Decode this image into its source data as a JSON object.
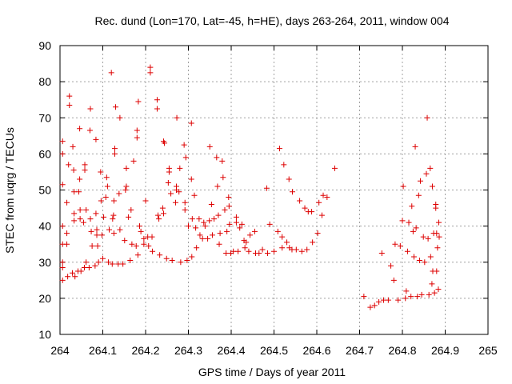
{
  "chart_data": {
    "type": "scatter",
    "title": "Rec. dund (Lon=170, Lat=-45, h=HE), days 263-264, 2011, window 004",
    "xlabel": "GPS time / Days of year 2011",
    "ylabel": "STEC from uqrg / TECUs",
    "xlim": [
      264,
      265
    ],
    "ylim": [
      10,
      90
    ],
    "x_ticks": [
      264,
      264.1,
      264.2,
      264.3,
      264.4,
      264.5,
      264.6,
      264.7,
      264.8,
      264.9,
      265
    ],
    "x_tick_labels": [
      "264",
      "264.1",
      "264.2",
      "264.3",
      "264.4",
      "264.5",
      "264.6",
      "264.7",
      "264.8",
      "264.9",
      "265"
    ],
    "y_ticks": [
      10,
      20,
      30,
      40,
      50,
      60,
      70,
      80,
      90
    ],
    "y_tick_labels": [
      "10",
      "20",
      "30",
      "40",
      "50",
      "60",
      "70",
      "80",
      "90"
    ],
    "grid": true,
    "marker": "+",
    "marker_color": "#dd0000",
    "series": [
      {
        "points": [
          [
            264.006,
            63.5
          ],
          [
            264.006,
            60.0
          ],
          [
            264.006,
            51.5
          ],
          [
            264.006,
            40.0
          ],
          [
            264.006,
            35.0
          ],
          [
            264.006,
            30.0
          ],
          [
            264.006,
            28.5
          ],
          [
            264.006,
            25.0
          ],
          [
            264.016,
            46.5
          ],
          [
            264.016,
            38.0
          ],
          [
            264.016,
            35.0
          ],
          [
            264.018,
            26.0
          ],
          [
            264.02,
            57.0
          ],
          [
            264.022,
            76.0
          ],
          [
            264.022,
            73.5
          ],
          [
            264.029,
            27.0
          ],
          [
            264.03,
            62.0
          ],
          [
            264.032,
            55.5
          ],
          [
            264.033,
            49.5
          ],
          [
            264.033,
            43.5
          ],
          [
            264.033,
            41.5
          ],
          [
            264.035,
            26.0
          ],
          [
            264.042,
            27.5
          ],
          [
            264.044,
            49.5
          ],
          [
            264.046,
            67.0
          ],
          [
            264.046,
            53.0
          ],
          [
            264.047,
            44.5
          ],
          [
            264.047,
            42.0
          ],
          [
            264.049,
            27.5
          ],
          [
            264.055,
            41.0
          ],
          [
            264.057,
            28.5
          ],
          [
            264.058,
            57.0
          ],
          [
            264.058,
            55.5
          ],
          [
            264.061,
            44.5
          ],
          [
            264.061,
            30.0
          ],
          [
            264.068,
            28.5
          ],
          [
            264.07,
            66.5
          ],
          [
            264.071,
            72.5
          ],
          [
            264.071,
            42.0
          ],
          [
            264.073,
            38.5
          ],
          [
            264.075,
            34.5
          ],
          [
            264.082,
            29.0
          ],
          [
            264.084,
            64.0
          ],
          [
            264.084,
            43.5
          ],
          [
            264.086,
            39.0
          ],
          [
            264.086,
            37.5
          ],
          [
            264.088,
            34.5
          ],
          [
            264.09,
            30.0
          ],
          [
            264.095,
            55.0
          ],
          [
            264.096,
            47.0
          ],
          [
            264.098,
            37.5
          ],
          [
            264.1,
            31.0
          ],
          [
            264.102,
            42.5
          ],
          [
            264.107,
            48.0
          ],
          [
            264.109,
            53.5
          ],
          [
            264.111,
            51.0
          ],
          [
            264.113,
            30.0
          ],
          [
            264.115,
            39.0
          ],
          [
            264.12,
            82.5
          ],
          [
            264.122,
            29.5
          ],
          [
            264.123,
            42.0
          ],
          [
            264.125,
            43.0
          ],
          [
            264.126,
            38.0
          ],
          [
            264.126,
            47.0
          ],
          [
            264.128,
            60.0
          ],
          [
            264.128,
            61.5
          ],
          [
            264.13,
            73.0
          ],
          [
            264.136,
            29.5
          ],
          [
            264.138,
            49.0
          ],
          [
            264.14,
            39.0
          ],
          [
            264.14,
            70.0
          ],
          [
            264.147,
            29.5
          ],
          [
            264.151,
            36.0
          ],
          [
            264.153,
            50.0
          ],
          [
            264.155,
            51.0
          ],
          [
            264.155,
            56.0
          ],
          [
            264.16,
            42.5
          ],
          [
            264.164,
            30.5
          ],
          [
            264.166,
            44.5
          ],
          [
            264.168,
            35.0
          ],
          [
            264.172,
            58.0
          ],
          [
            264.178,
            34.5
          ],
          [
            264.18,
            64.5
          ],
          [
            264.18,
            66.5
          ],
          [
            264.182,
            32.0
          ],
          [
            264.183,
            74.5
          ],
          [
            264.186,
            40.0
          ],
          [
            264.189,
            38.5
          ],
          [
            264.196,
            36.5
          ],
          [
            264.196,
            35.0
          ],
          [
            264.2,
            47.0
          ],
          [
            264.205,
            37.0
          ],
          [
            264.207,
            34.5
          ],
          [
            264.211,
            84.0
          ],
          [
            264.211,
            82.5
          ],
          [
            264.215,
            37.0
          ],
          [
            264.216,
            33.0
          ],
          [
            264.227,
            72.5
          ],
          [
            264.227,
            75.0
          ],
          [
            264.229,
            43.0
          ],
          [
            264.231,
            42.0
          ],
          [
            264.233,
            32.0
          ],
          [
            264.24,
            45.0
          ],
          [
            264.242,
            43.5
          ],
          [
            264.242,
            63.5
          ],
          [
            264.244,
            63.0
          ],
          [
            264.249,
            31.0
          ],
          [
            264.253,
            52.0
          ],
          [
            264.255,
            56.0
          ],
          [
            264.255,
            55.0
          ],
          [
            264.259,
            49.0
          ],
          [
            264.262,
            30.5
          ],
          [
            264.27,
            46.5
          ],
          [
            264.272,
            51.0
          ],
          [
            264.272,
            50.0
          ],
          [
            264.273,
            70.0
          ],
          [
            264.278,
            49.5
          ],
          [
            264.28,
            56.0
          ],
          [
            264.282,
            30.0
          ],
          [
            264.29,
            62.5
          ],
          [
            264.292,
            46.5
          ],
          [
            264.292,
            44.5
          ],
          [
            264.294,
            59.0
          ],
          [
            264.297,
            30.5
          ],
          [
            264.3,
            40.0
          ],
          [
            264.307,
            68.5
          ],
          [
            264.307,
            53.0
          ],
          [
            264.308,
            31.5
          ],
          [
            264.309,
            42.0
          ],
          [
            264.314,
            48.5
          ],
          [
            264.317,
            39.5
          ],
          [
            264.319,
            34.0
          ],
          [
            264.325,
            42.0
          ],
          [
            264.327,
            37.5
          ],
          [
            264.333,
            36.5
          ],
          [
            264.336,
            41.0
          ],
          [
            264.339,
            40.0
          ],
          [
            264.345,
            36.5
          ],
          [
            264.349,
            41.5
          ],
          [
            264.35,
            62.0
          ],
          [
            264.354,
            46.0
          ],
          [
            264.356,
            37.5
          ],
          [
            264.36,
            42.0
          ],
          [
            264.366,
            59.0
          ],
          [
            264.368,
            51.0
          ],
          [
            264.37,
            43.0
          ],
          [
            264.372,
            35.0
          ],
          [
            264.374,
            38.0
          ],
          [
            264.379,
            58.0
          ],
          [
            264.381,
            53.5
          ],
          [
            264.385,
            44.5
          ],
          [
            264.388,
            32.5
          ],
          [
            264.39,
            38.5
          ],
          [
            264.394,
            48.0
          ],
          [
            264.395,
            45.5
          ],
          [
            264.396,
            40.5
          ],
          [
            264.399,
            32.5
          ],
          [
            264.405,
            33.0
          ],
          [
            264.412,
            42.5
          ],
          [
            264.412,
            41.0
          ],
          [
            264.416,
            33.0
          ],
          [
            264.42,
            39.5
          ],
          [
            264.425,
            40.5
          ],
          [
            264.43,
            36.0
          ],
          [
            264.432,
            34.0
          ],
          [
            264.435,
            35.5
          ],
          [
            264.441,
            33.0
          ],
          [
            264.444,
            37.5
          ],
          [
            264.455,
            38.5
          ],
          [
            264.457,
            32.5
          ],
          [
            264.465,
            32.5
          ],
          [
            264.473,
            33.5
          ],
          [
            264.483,
            50.5
          ],
          [
            264.485,
            32.5
          ],
          [
            264.49,
            40.5
          ],
          [
            264.5,
            33.0
          ],
          [
            264.509,
            38.5
          ],
          [
            264.513,
            61.5
          ],
          [
            264.519,
            34.0
          ],
          [
            264.519,
            37.0
          ],
          [
            264.523,
            57.0
          ],
          [
            264.53,
            35.5
          ],
          [
            264.535,
            53.0
          ],
          [
            264.536,
            34.0
          ],
          [
            264.542,
            33.5
          ],
          [
            264.543,
            49.5
          ],
          [
            264.552,
            33.5
          ],
          [
            264.56,
            47.0
          ],
          [
            264.565,
            33.0
          ],
          [
            264.572,
            45.0
          ],
          [
            264.577,
            33.5
          ],
          [
            264.58,
            44.0
          ],
          [
            264.588,
            44.0
          ],
          [
            264.59,
            35.5
          ],
          [
            264.602,
            38.0
          ],
          [
            264.605,
            46.5
          ],
          [
            264.612,
            43.0
          ],
          [
            264.615,
            48.5
          ],
          [
            264.624,
            48.0
          ],
          [
            264.642,
            56.0
          ],
          [
            264.71,
            20.5
          ],
          [
            264.725,
            17.5
          ],
          [
            264.735,
            18.0
          ],
          [
            264.745,
            19.0
          ],
          [
            264.752,
            32.5
          ],
          [
            264.756,
            19.5
          ],
          [
            264.767,
            19.5
          ],
          [
            264.773,
            29.0
          ],
          [
            264.78,
            25.0
          ],
          [
            264.783,
            35.0
          ],
          [
            264.79,
            19.5
          ],
          [
            264.795,
            34.5
          ],
          [
            264.8,
            41.5
          ],
          [
            264.802,
            51.0
          ],
          [
            264.807,
            20.0
          ],
          [
            264.809,
            22.0
          ],
          [
            264.812,
            33.0
          ],
          [
            264.815,
            41.0
          ],
          [
            264.82,
            20.5
          ],
          [
            264.822,
            45.5
          ],
          [
            264.825,
            38.5
          ],
          [
            264.827,
            31.5
          ],
          [
            264.83,
            62.0
          ],
          [
            264.832,
            39.5
          ],
          [
            264.835,
            20.5
          ],
          [
            264.838,
            48.5
          ],
          [
            264.84,
            30.5
          ],
          [
            264.842,
            52.5
          ],
          [
            264.845,
            21.0
          ],
          [
            264.849,
            37.0
          ],
          [
            264.852,
            30.0
          ],
          [
            264.856,
            54.5
          ],
          [
            264.858,
            70.0
          ],
          [
            264.86,
            36.5
          ],
          [
            264.862,
            21.0
          ],
          [
            264.865,
            56.0
          ],
          [
            264.866,
            31.5
          ],
          [
            264.869,
            24.0
          ],
          [
            264.87,
            51.0
          ],
          [
            264.871,
            27.5
          ],
          [
            264.873,
            38.0
          ],
          [
            264.875,
            21.5
          ],
          [
            264.878,
            46.0
          ],
          [
            264.878,
            45.0
          ],
          [
            264.88,
            38.0
          ],
          [
            264.88,
            27.5
          ],
          [
            264.882,
            34.0
          ],
          [
            264.884,
            22.5
          ],
          [
            264.885,
            41.0
          ],
          [
            264.886,
            37.0
          ]
        ]
      }
    ]
  }
}
